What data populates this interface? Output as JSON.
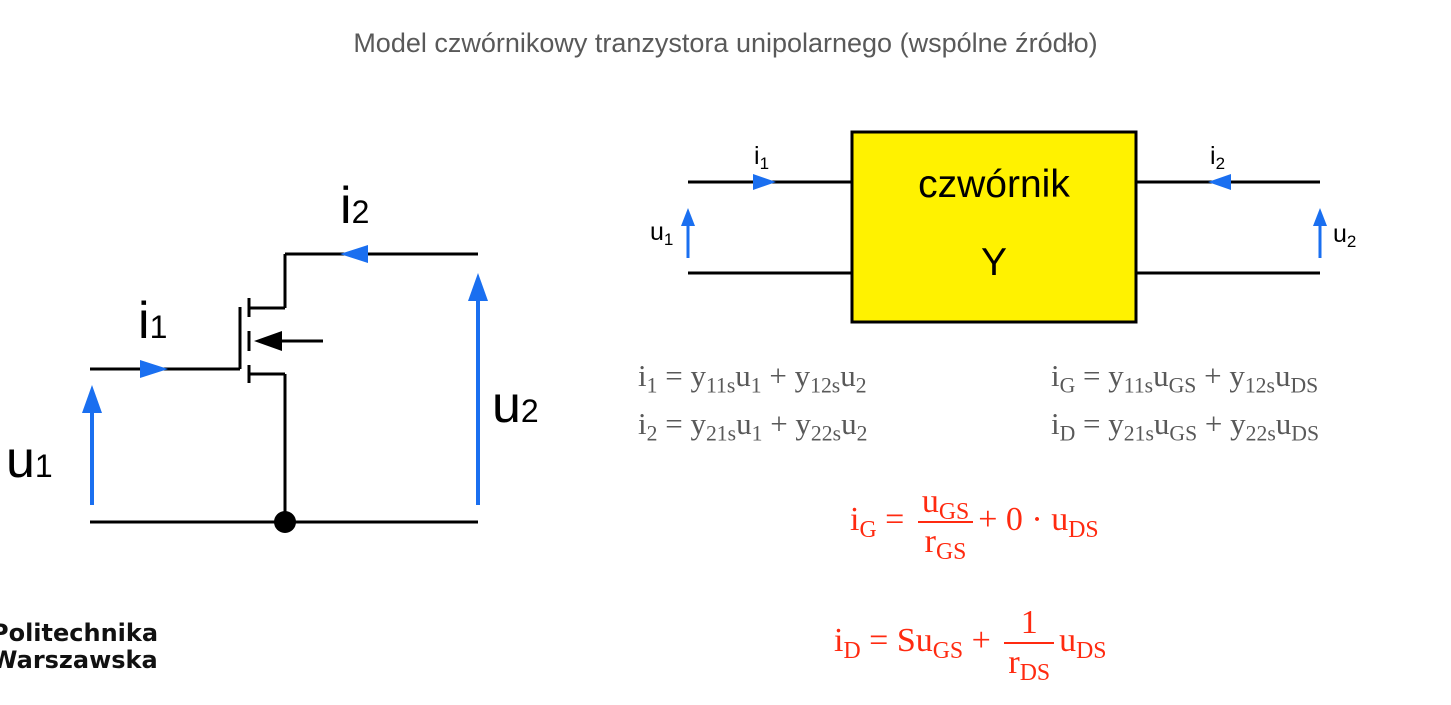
{
  "title": "Model czwórnikowy tranzystora unipolarnego (wspólne źródło)",
  "left_circuit": {
    "i1": {
      "base": "i",
      "sub": "1"
    },
    "i2": {
      "base": "i",
      "sub": "2"
    },
    "u1": {
      "base": "u",
      "sub": "1"
    },
    "u2": {
      "base": "u",
      "sub": "2"
    }
  },
  "two_port": {
    "label_line1": "czwórnik",
    "label_line2": "Y",
    "box_color": "#fff200",
    "i1": {
      "base": "i",
      "sub": "1"
    },
    "i2": {
      "base": "i",
      "sub": "2"
    },
    "u1": {
      "base": "u",
      "sub": "1"
    },
    "u2": {
      "base": "u",
      "sub": "2"
    }
  },
  "arrow_color": "#1a6ff0",
  "equation_color": "#ff2a10",
  "equations": {
    "general_1": {
      "lhs": "i",
      "lhs_sub": "1",
      "t1": "y",
      "t1_sub": "11s",
      "v1": "u",
      "v1_sub": "1",
      "t2": "y",
      "t2_sub": "12s",
      "v2": "u",
      "v2_sub": "2"
    },
    "general_2": {
      "lhs": "i",
      "lhs_sub": "2",
      "t1": "y",
      "t1_sub": "21s",
      "v1": "u",
      "v1_sub": "1",
      "t2": "y",
      "t2_sub": "22s",
      "v2": "u",
      "v2_sub": "2"
    },
    "fet_1": {
      "lhs": "i",
      "lhs_sub": "G",
      "t1": "y",
      "t1_sub": "11s",
      "v1": "u",
      "v1_sub": "GS",
      "t2": "y",
      "t2_sub": "12s",
      "v2": "u",
      "v2_sub": "DS"
    },
    "fet_2": {
      "lhs": "i",
      "lhs_sub": "D",
      "t1": "y",
      "t1_sub": "21s",
      "v1": "u",
      "v1_sub": "GS",
      "t2": "y",
      "t2_sub": "22s",
      "v2": "u",
      "v2_sub": "DS"
    },
    "red_1": {
      "lhs": "i",
      "lhs_sub": "G",
      "num": "u",
      "num_sub": "GS",
      "den": "r",
      "den_sub": "GS",
      "tail": "+ 0 · u",
      "tail_sub": "DS"
    },
    "red_2": {
      "lhs": "i",
      "lhs_sub": "D",
      "head": "Su",
      "head_sub": "GS",
      "num": "1",
      "den": "r",
      "den_sub": "DS",
      "tail": "u",
      "tail_sub": "DS"
    }
  },
  "logo": {
    "line1": "Politechnika",
    "line2": "Warszawska"
  }
}
